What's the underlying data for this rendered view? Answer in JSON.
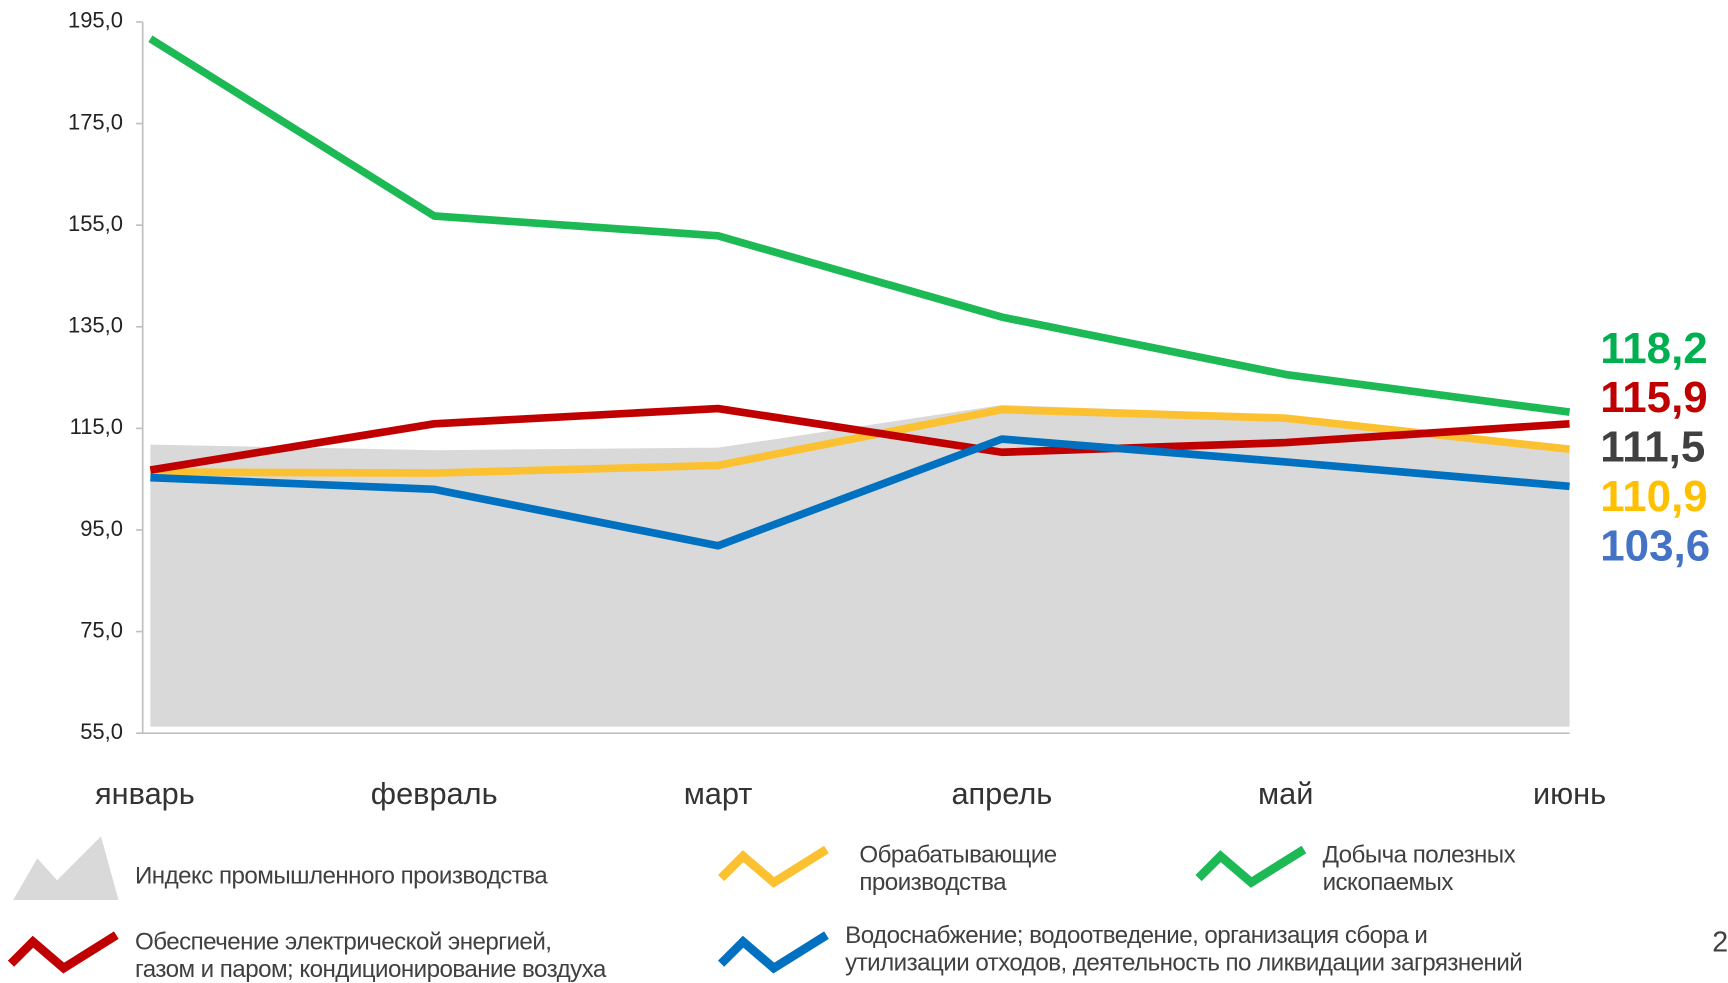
{
  "chart_data": {
    "type": "line",
    "categories": [
      "январь",
      "февраль",
      "март",
      "апрель",
      "май",
      "июнь"
    ],
    "ylim": [
      55,
      195
    ],
    "yticks": [
      {
        "value": 55,
        "label": "55,0"
      },
      {
        "value": 75,
        "label": "75,0"
      },
      {
        "value": 95,
        "label": "95,0"
      },
      {
        "value": 115,
        "label": "115,0"
      },
      {
        "value": 135,
        "label": "135,0"
      },
      {
        "value": 155,
        "label": "155,0"
      },
      {
        "value": 175,
        "label": "175,0"
      },
      {
        "value": 195,
        "label": "195,0"
      }
    ],
    "series": [
      {
        "name": "Индекс промышленного производства",
        "kind": "area",
        "color": "#d9d9d9",
        "label_color": "#404040",
        "values": [
          111.8,
          110.7,
          111.2,
          119.6,
          117.6,
          111.5
        ],
        "value_labels": [
          null,
          null,
          null,
          null,
          null,
          "111,5"
        ]
      },
      {
        "name": "Обрабатывающие\nпроизводства",
        "kind": "line",
        "color": "#fcc130",
        "label_color": "#ffc000",
        "values": [
          106.4,
          106.2,
          107.7,
          118.7,
          117.0,
          110.9
        ],
        "value_labels": [
          null,
          null,
          null,
          null,
          null,
          "110,9"
        ]
      },
      {
        "name": "Добыча полезных\nископаемых",
        "kind": "line",
        "color": "#1db954",
        "label_color": "#00b050",
        "values": [
          191.7,
          156.8,
          152.9,
          136.9,
          125.6,
          118.2
        ],
        "value_labels": [
          null,
          null,
          null,
          null,
          null,
          "118,2"
        ]
      },
      {
        "name": "Обеспечение электрической энергией,\nгазом и паром; кондиционирование воздуха",
        "kind": "line",
        "color": "#c00000",
        "label_color": "#c00000",
        "values": [
          106.8,
          115.9,
          118.9,
          110.3,
          112.2,
          115.9
        ],
        "value_labels": [
          null,
          null,
          null,
          null,
          null,
          "115,9"
        ]
      },
      {
        "name": "Водоснабжение; водоотведение, организация сбора и\nутилизации отходов, деятельность по ликвидации загрязнений",
        "kind": "line",
        "color": "#0070c0",
        "label_color": "#4472c4",
        "values": [
          105.3,
          103.0,
          91.9,
          112.9,
          108.4,
          103.6
        ],
        "value_labels": [
          null,
          null,
          null,
          null,
          null,
          "103,6"
        ]
      }
    ]
  },
  "page_number": "2"
}
